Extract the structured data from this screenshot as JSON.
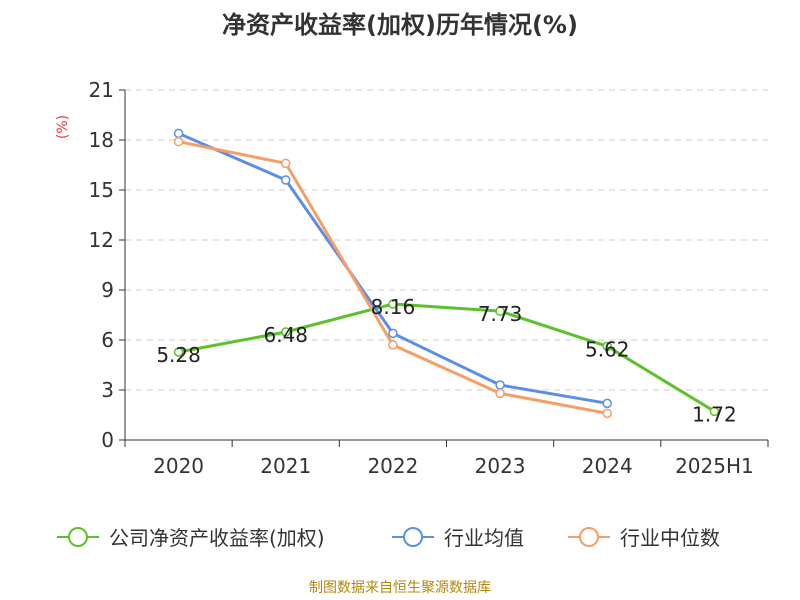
{
  "chart_data": {
    "type": "line",
    "title": "净资产收益率(加权)历年情况(%)",
    "ylabel": "(%)",
    "xlabel": "",
    "categories": [
      "2020",
      "2021",
      "2022",
      "2023",
      "2024",
      "2025H1"
    ],
    "ylim": [
      0,
      21
    ],
    "yticks": [
      0,
      3,
      6,
      9,
      12,
      15,
      18,
      21
    ],
    "grid": true,
    "legend_position": "bottom",
    "series": [
      {
        "name": "公司净资产收益率(加权)",
        "color": "#5cc12a",
        "values": [
          5.28,
          6.48,
          8.16,
          7.73,
          5.62,
          1.72
        ],
        "labels": [
          "5.28",
          "6.48",
          "8.16",
          "7.73",
          "5.62",
          "1.72"
        ],
        "show_labels": true
      },
      {
        "name": "行业均值",
        "color": "#5b8ee6",
        "values": [
          18.4,
          15.6,
          6.4,
          3.3,
          2.2,
          null
        ],
        "show_labels": false
      },
      {
        "name": "行业中位数",
        "color": "#f79d65",
        "values": [
          17.9,
          16.6,
          5.7,
          2.8,
          1.6,
          null
        ],
        "show_labels": false
      }
    ]
  },
  "colors": {
    "title": "#333333",
    "ylabel": "#e8383d",
    "axis": "#333333",
    "grid": "#cccccc",
    "source": "#b8860b"
  },
  "source_text": "制图数据来自恒生聚源数据库"
}
